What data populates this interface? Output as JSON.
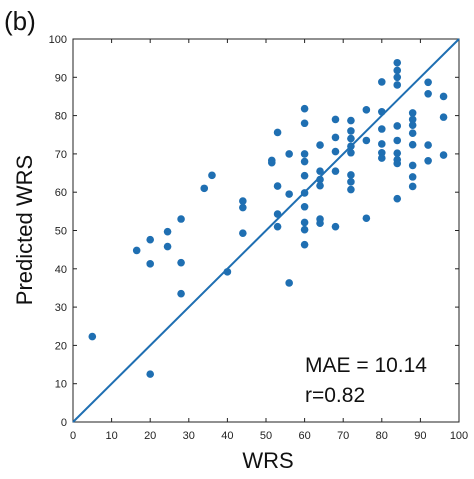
{
  "panel_label": "(b)",
  "chart_data": {
    "type": "scatter",
    "xlabel": "WRS",
    "ylabel": "Predicted WRS",
    "xlim": [
      0,
      100
    ],
    "ylim": [
      0,
      100
    ],
    "xticks": [
      0,
      10,
      20,
      30,
      40,
      50,
      60,
      70,
      80,
      90,
      100
    ],
    "yticks": [
      0,
      10,
      20,
      30,
      40,
      50,
      60,
      70,
      80,
      90,
      100
    ],
    "grid": false,
    "point_color": "#1f6fb2",
    "line_color": "#1f6fb2",
    "reference_line": {
      "x": [
        0,
        100
      ],
      "y": [
        0,
        100
      ]
    },
    "annotations": [
      "MAE = 10.14",
      "r=0.82"
    ],
    "points": [
      {
        "x": 5,
        "y": 22.3
      },
      {
        "x": 16.5,
        "y": 44.8
      },
      {
        "x": 20,
        "y": 47.6
      },
      {
        "x": 20,
        "y": 41.3
      },
      {
        "x": 20,
        "y": 12.5
      },
      {
        "x": 24.5,
        "y": 49.7
      },
      {
        "x": 24.5,
        "y": 45.8
      },
      {
        "x": 28,
        "y": 53.0
      },
      {
        "x": 28,
        "y": 41.6
      },
      {
        "x": 28,
        "y": 33.5
      },
      {
        "x": 34,
        "y": 61.0
      },
      {
        "x": 36,
        "y": 64.4
      },
      {
        "x": 40,
        "y": 39.2
      },
      {
        "x": 44,
        "y": 57.7
      },
      {
        "x": 44,
        "y": 56.0
      },
      {
        "x": 44,
        "y": 49.3
      },
      {
        "x": 51.5,
        "y": 67.7
      },
      {
        "x": 51.5,
        "y": 68.3
      },
      {
        "x": 53,
        "y": 75.6
      },
      {
        "x": 53,
        "y": 61.6
      },
      {
        "x": 53,
        "y": 54.3
      },
      {
        "x": 53,
        "y": 51.0
      },
      {
        "x": 56,
        "y": 70.0
      },
      {
        "x": 56,
        "y": 59.5
      },
      {
        "x": 56,
        "y": 36.3
      },
      {
        "x": 60,
        "y": 81.8
      },
      {
        "x": 60,
        "y": 78.0
      },
      {
        "x": 60,
        "y": 70.0
      },
      {
        "x": 60,
        "y": 68.0
      },
      {
        "x": 60,
        "y": 64.3
      },
      {
        "x": 60,
        "y": 59.8
      },
      {
        "x": 60,
        "y": 56.2
      },
      {
        "x": 60,
        "y": 52.1
      },
      {
        "x": 60,
        "y": 50.2
      },
      {
        "x": 60,
        "y": 46.3
      },
      {
        "x": 64,
        "y": 72.3
      },
      {
        "x": 64,
        "y": 65.5
      },
      {
        "x": 64,
        "y": 63.3
      },
      {
        "x": 64,
        "y": 61.7
      },
      {
        "x": 64,
        "y": 53.0
      },
      {
        "x": 64,
        "y": 51.9
      },
      {
        "x": 68,
        "y": 79.0
      },
      {
        "x": 68,
        "y": 74.3
      },
      {
        "x": 68,
        "y": 70.6
      },
      {
        "x": 68,
        "y": 65.5
      },
      {
        "x": 68,
        "y": 51.0
      },
      {
        "x": 72,
        "y": 78.7
      },
      {
        "x": 72,
        "y": 76.0
      },
      {
        "x": 72,
        "y": 74.0
      },
      {
        "x": 72,
        "y": 72.0
      },
      {
        "x": 72,
        "y": 70.3
      },
      {
        "x": 72,
        "y": 64.5
      },
      {
        "x": 72,
        "y": 62.7
      },
      {
        "x": 72,
        "y": 60.7
      },
      {
        "x": 76,
        "y": 81.5
      },
      {
        "x": 76,
        "y": 73.5
      },
      {
        "x": 76,
        "y": 53.2
      },
      {
        "x": 80,
        "y": 88.8
      },
      {
        "x": 80,
        "y": 81.0
      },
      {
        "x": 80,
        "y": 76.5
      },
      {
        "x": 80,
        "y": 72.6
      },
      {
        "x": 80,
        "y": 70.3
      },
      {
        "x": 80,
        "y": 68.9
      },
      {
        "x": 84,
        "y": 93.8
      },
      {
        "x": 84,
        "y": 91.8
      },
      {
        "x": 84,
        "y": 90.0
      },
      {
        "x": 84,
        "y": 88.0
      },
      {
        "x": 84,
        "y": 77.3
      },
      {
        "x": 84,
        "y": 73.5
      },
      {
        "x": 84,
        "y": 70.2
      },
      {
        "x": 84,
        "y": 68.5
      },
      {
        "x": 84,
        "y": 67.5
      },
      {
        "x": 84,
        "y": 58.3
      },
      {
        "x": 88,
        "y": 80.7
      },
      {
        "x": 88,
        "y": 79.0
      },
      {
        "x": 88,
        "y": 77.5
      },
      {
        "x": 88,
        "y": 75.4
      },
      {
        "x": 88,
        "y": 72.4
      },
      {
        "x": 88,
        "y": 67.0
      },
      {
        "x": 88,
        "y": 64.0
      },
      {
        "x": 88,
        "y": 61.5
      },
      {
        "x": 92,
        "y": 88.7
      },
      {
        "x": 92,
        "y": 85.7
      },
      {
        "x": 92,
        "y": 72.3
      },
      {
        "x": 92,
        "y": 68.2
      },
      {
        "x": 96,
        "y": 85.0
      },
      {
        "x": 96,
        "y": 79.6
      },
      {
        "x": 96,
        "y": 69.7
      }
    ]
  }
}
